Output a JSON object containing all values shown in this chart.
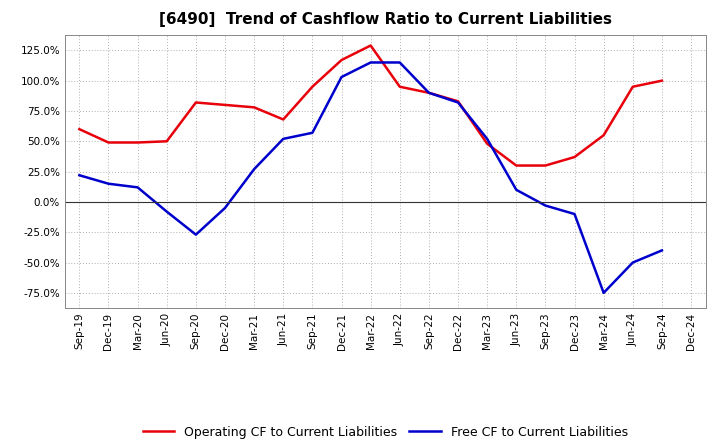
{
  "title": "[6490]  Trend of Cashflow Ratio to Current Liabilities",
  "x_labels": [
    "Sep-19",
    "Dec-19",
    "Mar-20",
    "Jun-20",
    "Sep-20",
    "Dec-20",
    "Mar-21",
    "Jun-21",
    "Sep-21",
    "Dec-21",
    "Mar-22",
    "Jun-22",
    "Sep-22",
    "Dec-22",
    "Mar-23",
    "Jun-23",
    "Sep-23",
    "Dec-23",
    "Mar-24",
    "Jun-24",
    "Sep-24",
    "Dec-24"
  ],
  "operating_cf": [
    60,
    49,
    49,
    50,
    82,
    80,
    78,
    68,
    95,
    117,
    129,
    95,
    90,
    83,
    48,
    30,
    30,
    37,
    55,
    95,
    100,
    null
  ],
  "free_cf": [
    22,
    15,
    12,
    -8,
    -27,
    -5,
    27,
    52,
    57,
    103,
    115,
    115,
    90,
    82,
    52,
    10,
    -3,
    -10,
    -75,
    -50,
    -40,
    null
  ],
  "operating_color": "#e8000a",
  "free_color": "#0000cc",
  "bg_color": "#ffffff",
  "plot_bg_color": "#ffffff",
  "grid_color": "#b0b0b0",
  "ylim": [
    -87.5,
    137.5
  ],
  "yticks": [
    -75,
    -50,
    -25,
    0,
    25,
    50,
    75,
    100,
    125
  ],
  "legend_op": "Operating CF to Current Liabilities",
  "legend_free": "Free CF to Current Liabilities",
  "title_fontsize": 11,
  "tick_fontsize": 7.5,
  "legend_fontsize": 9
}
